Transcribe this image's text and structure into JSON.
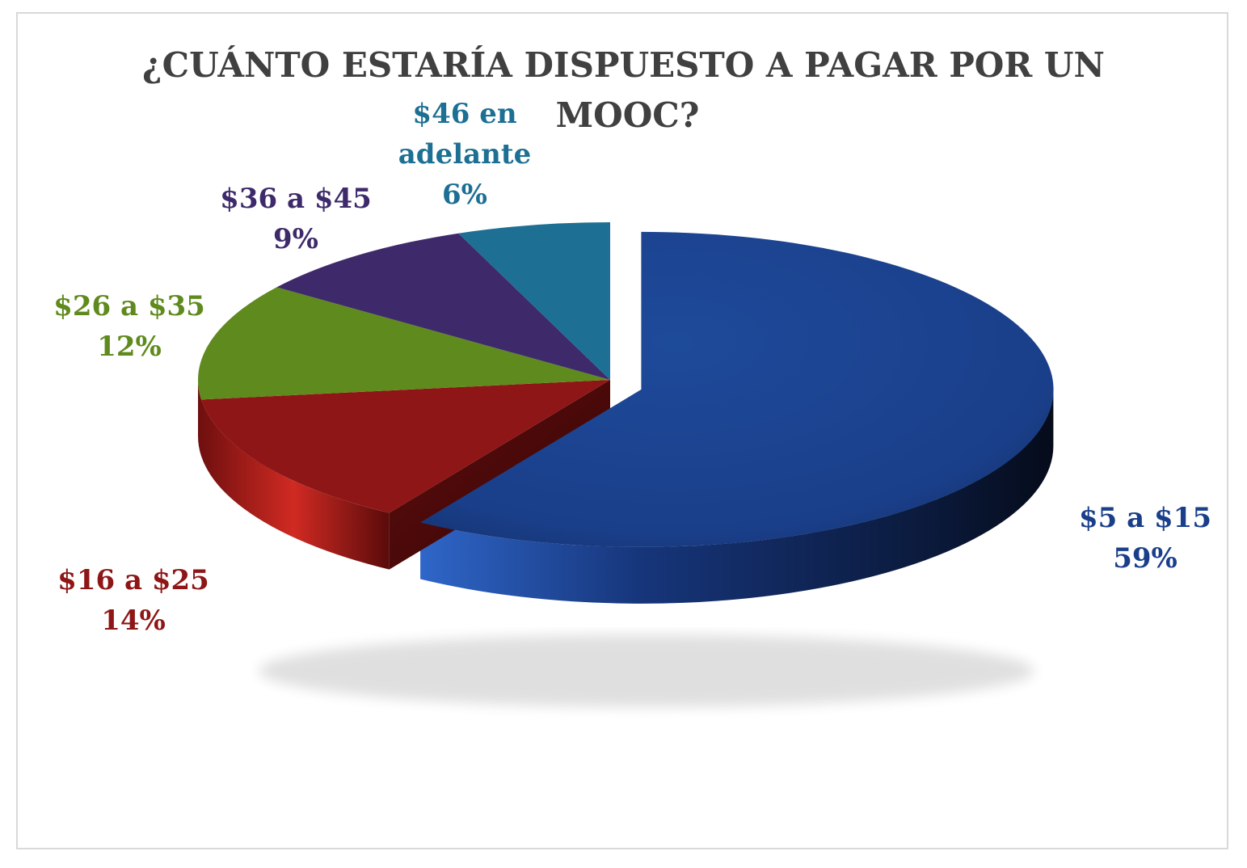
{
  "chart_data": {
    "type": "pie",
    "title_line1": "¿CUÁNTO ESTARÍA DISPUESTO A PAGAR POR UN",
    "title_line2": "MOOC?",
    "slices": [
      {
        "name": "$5 a $15",
        "value": 59,
        "label": "59%",
        "color": "#1a3f8a"
      },
      {
        "name": "$16 a $25",
        "value": 14,
        "label": "14%",
        "color": "#8e1616"
      },
      {
        "name": "$26 a $35",
        "value": 12,
        "label": "12%",
        "color": "#5f8a1e"
      },
      {
        "name": "$36 a $45",
        "value": 9,
        "label": "9%",
        "color": "#3e2a6b"
      },
      {
        "name": "$46 en adelante",
        "name_line1": "$46 en",
        "name_line2": "adelante",
        "value": 6,
        "label": "6%",
        "color": "#1d6f94"
      }
    ],
    "legend": "none",
    "style": "3d-exploded"
  }
}
